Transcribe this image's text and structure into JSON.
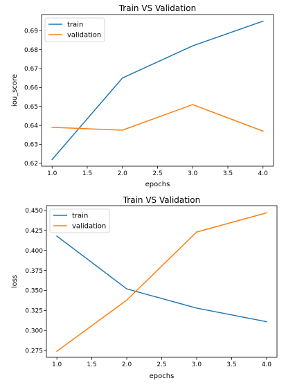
{
  "colors": {
    "train": "#1f77b4",
    "validation": "#ff7f0e"
  },
  "chart_data": [
    {
      "type": "line",
      "title": "Train VS Validation",
      "xlabel": "epochs",
      "ylabel": "iou_score",
      "x": [
        1.0,
        2.0,
        3.0,
        4.0
      ],
      "xlim": [
        0.85,
        4.15
      ],
      "ylim": [
        0.6185,
        0.6985
      ],
      "xticks": [
        1.0,
        1.5,
        2.0,
        2.5,
        3.0,
        3.5,
        4.0
      ],
      "xtick_labels": [
        "1.0",
        "1.5",
        "2.0",
        "2.5",
        "3.0",
        "3.5",
        "4.0"
      ],
      "yticks": [
        0.62,
        0.63,
        0.64,
        0.65,
        0.66,
        0.67,
        0.68,
        0.69
      ],
      "ytick_labels": [
        "0.62",
        "0.63",
        "0.64",
        "0.65",
        "0.66",
        "0.67",
        "0.68",
        "0.69"
      ],
      "legend_position": "upper-left",
      "series": [
        {
          "name": "train",
          "values": [
            0.622,
            0.665,
            0.682,
            0.695
          ]
        },
        {
          "name": "validation",
          "values": [
            0.639,
            0.6375,
            0.651,
            0.637
          ]
        }
      ]
    },
    {
      "type": "line",
      "title": "Train VS Validation",
      "xlabel": "epochs",
      "ylabel": "loss",
      "x": [
        1.0,
        2.0,
        3.0,
        4.0
      ],
      "xlim": [
        0.85,
        4.15
      ],
      "ylim": [
        0.2665,
        0.456
      ],
      "xticks": [
        1.0,
        1.5,
        2.0,
        2.5,
        3.0,
        3.5,
        4.0
      ],
      "xtick_labels": [
        "1.0",
        "1.5",
        "2.0",
        "2.5",
        "3.0",
        "3.5",
        "4.0"
      ],
      "yticks": [
        0.275,
        0.3,
        0.325,
        0.35,
        0.375,
        0.4,
        0.425,
        0.45
      ],
      "ytick_labels": [
        "0.275",
        "0.300",
        "0.325",
        "0.350",
        "0.375",
        "0.400",
        "0.425",
        "0.450"
      ],
      "legend_position": "upper-left",
      "series": [
        {
          "name": "train",
          "values": [
            0.418,
            0.352,
            0.328,
            0.311
          ]
        },
        {
          "name": "validation",
          "values": [
            0.274,
            0.338,
            0.423,
            0.447
          ]
        }
      ]
    }
  ]
}
